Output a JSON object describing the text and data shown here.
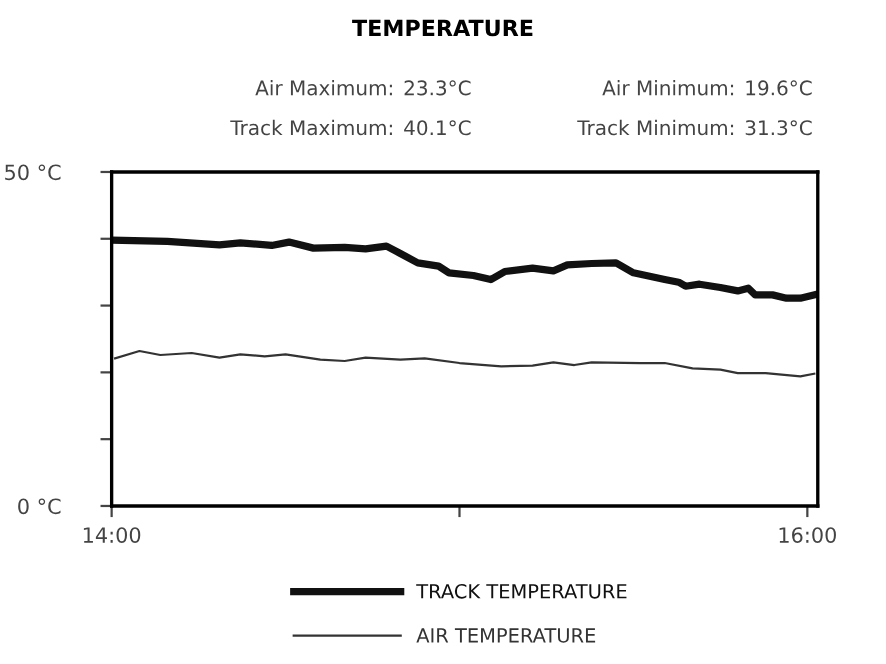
{
  "chart_data": {
    "type": "line",
    "title": "TEMPERATURE",
    "annotations": [
      "Air Maximum:",
      "23.3°C",
      "Air Minimum:",
      "19.6°C",
      "Track Maximum:",
      "40.1°C",
      "Track Minimum:",
      "31.3°C"
    ],
    "xlim": [
      14,
      16.03
    ],
    "xticks": [
      {
        "value": 14,
        "label": "14:00"
      },
      {
        "value": 15,
        "label": null
      },
      {
        "value": 16,
        "label": "16:00"
      }
    ],
    "ylim": [
      0,
      50
    ],
    "yticks": [
      {
        "value": 0,
        "label": "0 °C"
      },
      {
        "value": 10,
        "label": null
      },
      {
        "value": 20,
        "label": null
      },
      {
        "value": 30,
        "label": null
      },
      {
        "value": 40,
        "label": null
      },
      {
        "value": 50,
        "label": "50 °C"
      }
    ],
    "grid": false,
    "legend": "bottom",
    "marker": "none",
    "line_style": "solid",
    "series": [
      {
        "name": "TRACK TEMPERATURE",
        "color": "#111111",
        "x": [
          14.0,
          14.16,
          14.31,
          14.37,
          14.46,
          14.51,
          14.58,
          14.67,
          14.73,
          14.79,
          14.83,
          14.88,
          14.94,
          14.97,
          15.04,
          15.09,
          15.13,
          15.21,
          15.27,
          15.31,
          15.38,
          15.45,
          15.5,
          15.59,
          15.63,
          15.65,
          15.69,
          15.75,
          15.8,
          15.83,
          15.85,
          15.9,
          15.94,
          15.98,
          16.02
        ],
        "values": [
          39.8,
          39.6,
          39.1,
          39.4,
          39.0,
          39.5,
          38.6,
          38.7,
          38.5,
          38.9,
          37.8,
          36.4,
          35.9,
          34.9,
          34.5,
          33.9,
          35.1,
          35.6,
          35.2,
          36.1,
          36.3,
          36.4,
          34.9,
          33.9,
          33.5,
          32.9,
          33.2,
          32.7,
          32.2,
          32.6,
          31.6,
          31.6,
          31.1,
          31.1,
          31.6
        ]
      },
      {
        "name": "AIR TEMPERATURE",
        "color": "#333333",
        "x": [
          14.01,
          14.08,
          14.14,
          14.23,
          14.31,
          14.37,
          14.44,
          14.5,
          14.6,
          14.67,
          14.73,
          14.83,
          14.9,
          15.0,
          15.12,
          15.21,
          15.27,
          15.33,
          15.38,
          15.52,
          15.59,
          15.67,
          15.75,
          15.8,
          15.88,
          15.98,
          16.02
        ],
        "values": [
          22.1,
          23.2,
          22.6,
          22.9,
          22.2,
          22.7,
          22.4,
          22.7,
          21.9,
          21.7,
          22.2,
          21.9,
          22.1,
          21.4,
          20.9,
          21.0,
          21.5,
          21.1,
          21.5,
          21.4,
          21.4,
          20.6,
          20.4,
          19.9,
          19.9,
          19.4,
          19.8
        ]
      }
    ]
  }
}
